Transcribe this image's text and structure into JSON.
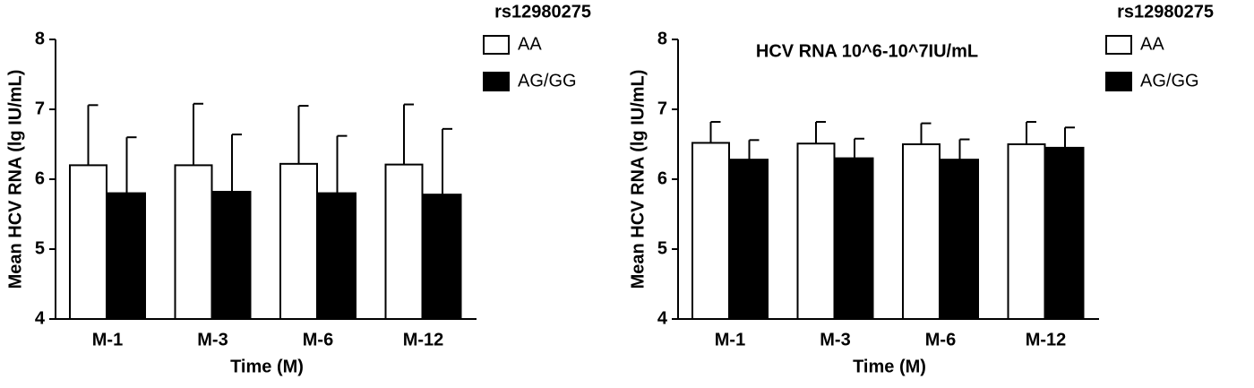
{
  "chart_data": [
    {
      "type": "bar",
      "y_label": "Mean HCV RNA (lg IU/mL)",
      "x_label": "Time (M)",
      "legend_title": "rs12980275",
      "categories": [
        "M-1",
        "M-3",
        "M-6",
        "M-12"
      ],
      "series": [
        {
          "name": "AA",
          "color": "#ffffff",
          "values": [
            6.2,
            6.2,
            6.22,
            6.21
          ],
          "errors": [
            0.86,
            0.88,
            0.83,
            0.86
          ]
        },
        {
          "name": "AG/GG",
          "color": "#000000",
          "values": [
            5.8,
            5.82,
            5.8,
            5.78
          ],
          "errors": [
            0.8,
            0.82,
            0.82,
            0.94
          ]
        }
      ],
      "ylim": [
        4,
        8
      ],
      "yticks": [
        4,
        5,
        6,
        7,
        8
      ]
    },
    {
      "type": "bar",
      "y_label": "Mean HCV RNA (lg IU/mL)",
      "x_label": "Time (M)",
      "legend_title": "rs12980275",
      "annotation": "HCV RNA 10^6-10^7IU/mL",
      "categories": [
        "M-1",
        "M-3",
        "M-6",
        "M-12"
      ],
      "series": [
        {
          "name": "AA",
          "color": "#ffffff",
          "values": [
            6.52,
            6.51,
            6.5,
            6.5
          ],
          "errors": [
            0.3,
            0.31,
            0.3,
            0.32
          ]
        },
        {
          "name": "AG/GG",
          "color": "#000000",
          "values": [
            6.28,
            6.3,
            6.28,
            6.45
          ],
          "errors": [
            0.28,
            0.28,
            0.29,
            0.29
          ]
        }
      ],
      "ylim": [
        4,
        8
      ],
      "yticks": [
        4,
        5,
        6,
        7,
        8
      ]
    }
  ]
}
